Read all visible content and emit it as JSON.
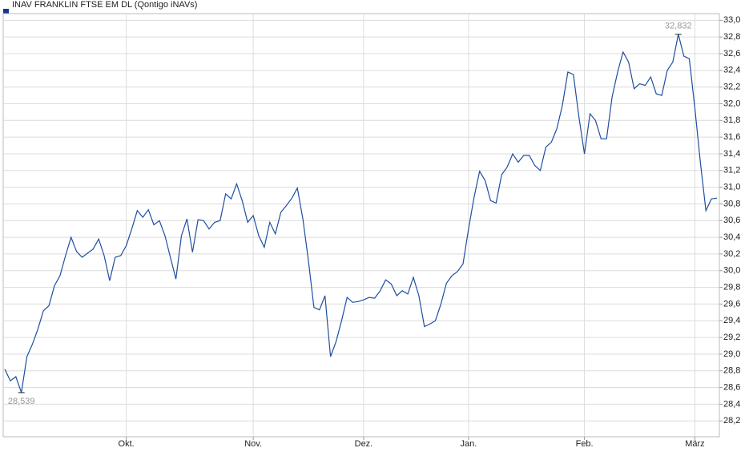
{
  "chart_data": {
    "type": "line",
    "legend": "INAV FRANKLIN FTSE EM DL (Qontigo iNAVs)",
    "legend_position": "top-left",
    "grid": true,
    "color": "#1f4ea0",
    "categories": [
      null,
      null,
      null,
      null,
      null,
      null,
      null,
      null,
      null,
      null,
      null,
      null,
      null,
      null,
      null,
      null,
      null,
      null,
      null,
      null,
      null,
      null,
      "Okt.",
      null,
      null,
      null,
      null,
      null,
      null,
      null,
      null,
      null,
      null,
      null,
      null,
      null,
      null,
      null,
      null,
      null,
      null,
      null,
      null,
      null,
      null,
      "Nov.",
      null,
      null,
      null,
      null,
      null,
      null,
      null,
      null,
      null,
      null,
      null,
      null,
      null,
      null,
      null,
      null,
      null,
      null,
      null,
      "Dez.",
      null,
      null,
      null,
      null,
      null,
      null,
      null,
      null,
      null,
      null,
      null,
      null,
      null,
      null,
      null,
      null,
      null,
      null,
      "Jan.",
      null,
      null,
      null,
      null,
      null,
      null,
      null,
      null,
      null,
      null,
      null,
      null,
      null,
      null,
      null,
      null,
      null,
      null,
      null,
      null,
      "Feb.",
      null,
      null,
      null,
      null,
      null,
      null,
      null,
      null,
      null,
      null,
      null,
      null,
      null,
      null,
      null,
      null,
      null,
      null,
      null,
      "März",
      null,
      null,
      null,
      null
    ],
    "values": [
      28.82,
      28.68,
      28.73,
      28.539,
      28.97,
      29.12,
      29.3,
      29.52,
      29.58,
      29.82,
      29.94,
      30.18,
      30.4,
      30.23,
      30.16,
      30.21,
      30.26,
      30.38,
      30.18,
      29.88,
      30.16,
      30.18,
      30.3,
      30.5,
      30.72,
      30.64,
      30.73,
      30.55,
      30.6,
      30.42,
      30.16,
      29.9,
      30.42,
      30.62,
      30.22,
      30.61,
      30.6,
      30.5,
      30.58,
      30.6,
      30.92,
      30.86,
      31.04,
      30.84,
      30.58,
      30.66,
      30.42,
      30.28,
      30.58,
      30.44,
      30.7,
      30.78,
      30.87,
      30.99,
      30.62,
      30.12,
      29.56,
      29.53,
      29.7,
      28.97,
      29.15,
      29.4,
      29.68,
      29.62,
      29.63,
      29.65,
      29.68,
      29.67,
      29.76,
      29.89,
      29.84,
      29.7,
      29.76,
      29.72,
      29.92,
      29.7,
      29.33,
      29.36,
      29.4,
      29.6,
      29.85,
      29.94,
      29.99,
      30.08,
      30.5,
      30.88,
      31.19,
      31.08,
      30.84,
      30.81,
      31.15,
      31.24,
      31.4,
      31.3,
      31.38,
      31.38,
      31.26,
      31.2,
      31.48,
      31.54,
      31.7,
      31.98,
      32.38,
      32.35,
      31.84,
      31.4,
      31.88,
      31.8,
      31.58,
      31.58,
      32.08,
      32.38,
      32.62,
      32.5,
      32.18,
      32.24,
      32.22,
      32.32,
      32.12,
      32.1,
      32.4,
      32.5,
      32.832,
      32.57,
      32.54,
      31.95,
      31.3,
      30.72,
      30.86,
      30.87
    ],
    "value_labels": [
      null,
      null,
      null,
      "28,539",
      null,
      null,
      null,
      null,
      null,
      null,
      null,
      null,
      null,
      null,
      null,
      null,
      null,
      null,
      null,
      null,
      null,
      null,
      null,
      null,
      null,
      null,
      null,
      null,
      null,
      null,
      null,
      null,
      null,
      null,
      null,
      null,
      null,
      null,
      null,
      null,
      null,
      null,
      null,
      null,
      null,
      null,
      null,
      null,
      null,
      null,
      null,
      null,
      null,
      null,
      null,
      null,
      null,
      null,
      null,
      null,
      null,
      null,
      null,
      null,
      null,
      null,
      null,
      null,
      null,
      null,
      null,
      null,
      null,
      null,
      null,
      null,
      null,
      null,
      null,
      null,
      null,
      null,
      null,
      null,
      null,
      null,
      null,
      null,
      null,
      null,
      null,
      null,
      null,
      null,
      null,
      null,
      null,
      null,
      null,
      null,
      null,
      null,
      null,
      null,
      null,
      null,
      null,
      null,
      null,
      null,
      null,
      null,
      null,
      null,
      null,
      null,
      null,
      null,
      null,
      null,
      null,
      null,
      "32,832",
      null,
      null,
      null,
      null,
      null,
      null,
      null
    ],
    "ylim": [
      28.01,
      33.08
    ],
    "yticks": [
      {
        "value": 28.2,
        "label": "28,2"
      },
      {
        "value": 28.4,
        "label": "28,4"
      },
      {
        "value": 28.6,
        "label": "28,6"
      },
      {
        "value": 28.8,
        "label": "28,8"
      },
      {
        "value": 29.0,
        "label": "29,0"
      },
      {
        "value": 29.2,
        "label": "29,2"
      },
      {
        "value": 29.4,
        "label": "29,4"
      },
      {
        "value": 29.6,
        "label": "29,6"
      },
      {
        "value": 29.8,
        "label": "29,8"
      },
      {
        "value": 30.0,
        "label": "30,0"
      },
      {
        "value": 30.2,
        "label": "30,2"
      },
      {
        "value": 30.4,
        "label": "30,4"
      },
      {
        "value": 30.6,
        "label": "30,6"
      },
      {
        "value": 30.8,
        "label": "30,8"
      },
      {
        "value": 31.0,
        "label": "31,0"
      },
      {
        "value": 31.2,
        "label": "31,2"
      },
      {
        "value": 31.4,
        "label": "31,4"
      },
      {
        "value": 31.6,
        "label": "31,6"
      },
      {
        "value": 31.8,
        "label": "31,8"
      },
      {
        "value": 32.0,
        "label": "32,0"
      },
      {
        "value": 32.2,
        "label": "32,2"
      },
      {
        "value": 32.4,
        "label": "32,4"
      },
      {
        "value": 32.6,
        "label": "32,6"
      },
      {
        "value": 32.8,
        "label": "32,8"
      },
      {
        "value": 33.0,
        "label": "33,0"
      }
    ]
  }
}
